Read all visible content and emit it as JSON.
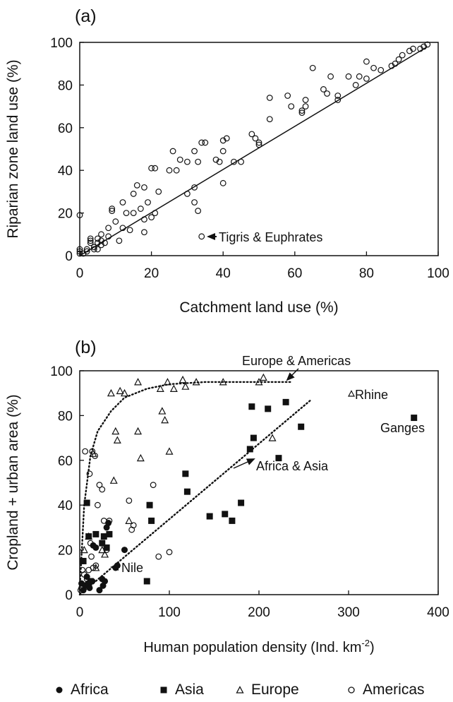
{
  "chart_data": [
    {
      "panel_label": "(a)",
      "type": "scatter",
      "xlabel": "Catchment land use (%)",
      "ylabel": "Riparian zone land use (%)",
      "xlim": [
        0,
        100
      ],
      "ylim": [
        0,
        100
      ],
      "xticks": [
        0,
        20,
        40,
        60,
        80,
        100
      ],
      "yticks": [
        0,
        20,
        40,
        60,
        80,
        100
      ],
      "grid": false,
      "reference_line": {
        "from": [
          0,
          0
        ],
        "to": [
          97,
          98
        ]
      },
      "annotation": {
        "text": "Tigris & Euphrates",
        "x": 34,
        "y": 9
      },
      "points": [
        [
          0,
          19
        ],
        [
          0,
          3
        ],
        [
          0,
          2
        ],
        [
          0,
          1
        ],
        [
          1,
          1
        ],
        [
          2,
          2
        ],
        [
          2,
          3
        ],
        [
          3,
          6
        ],
        [
          3,
          7
        ],
        [
          3,
          8
        ],
        [
          4,
          4
        ],
        [
          4,
          3
        ],
        [
          5,
          6
        ],
        [
          5,
          3
        ],
        [
          5,
          8
        ],
        [
          6,
          10
        ],
        [
          6,
          7
        ],
        [
          6,
          5
        ],
        [
          7,
          6
        ],
        [
          8,
          9
        ],
        [
          8,
          13
        ],
        [
          9,
          21
        ],
        [
          9,
          22
        ],
        [
          10,
          16
        ],
        [
          11,
          7
        ],
        [
          12,
          13
        ],
        [
          12,
          25
        ],
        [
          13,
          20
        ],
        [
          14,
          12
        ],
        [
          15,
          29
        ],
        [
          15,
          20
        ],
        [
          16,
          33
        ],
        [
          17,
          22
        ],
        [
          18,
          32
        ],
        [
          18,
          17
        ],
        [
          18,
          11
        ],
        [
          19,
          25
        ],
        [
          20,
          18
        ],
        [
          20,
          41
        ],
        [
          21,
          41
        ],
        [
          21,
          20
        ],
        [
          22,
          30
        ],
        [
          25,
          40
        ],
        [
          26,
          49
        ],
        [
          27,
          40
        ],
        [
          28,
          45
        ],
        [
          30,
          44
        ],
        [
          30,
          29
        ],
        [
          32,
          32
        ],
        [
          32,
          49
        ],
        [
          32,
          25
        ],
        [
          33,
          44
        ],
        [
          33,
          21
        ],
        [
          34,
          53
        ],
        [
          34,
          9
        ],
        [
          35,
          53
        ],
        [
          38,
          45
        ],
        [
          39,
          44
        ],
        [
          40,
          54
        ],
        [
          40,
          49
        ],
        [
          40,
          34
        ],
        [
          41,
          55
        ],
        [
          43,
          44
        ],
        [
          45,
          44
        ],
        [
          48,
          57
        ],
        [
          49,
          55
        ],
        [
          50,
          53
        ],
        [
          50,
          52
        ],
        [
          53,
          74
        ],
        [
          53,
          64
        ],
        [
          58,
          75
        ],
        [
          59,
          70
        ],
        [
          62,
          67
        ],
        [
          62,
          68
        ],
        [
          63,
          70
        ],
        [
          63,
          73
        ],
        [
          65,
          88
        ],
        [
          68,
          78
        ],
        [
          69,
          76
        ],
        [
          70,
          84
        ],
        [
          72,
          73
        ],
        [
          72,
          75
        ],
        [
          75,
          84
        ],
        [
          77,
          80
        ],
        [
          78,
          84
        ],
        [
          80,
          83
        ],
        [
          80,
          91
        ],
        [
          82,
          88
        ],
        [
          84,
          87
        ],
        [
          87,
          89
        ],
        [
          88,
          90
        ],
        [
          89,
          92
        ],
        [
          90,
          94
        ],
        [
          92,
          96
        ],
        [
          93,
          97
        ],
        [
          95,
          97
        ],
        [
          96,
          98
        ],
        [
          97,
          99
        ]
      ]
    },
    {
      "panel_label": "(b)",
      "type": "scatter",
      "xlabel_main": "Human population density (Ind. km",
      "xlabel_sup": "-2",
      "xlabel_end": ")",
      "ylabel": "Cropland + urban area (%)",
      "xlim": [
        0,
        400
      ],
      "ylim": [
        0,
        100
      ],
      "xticks": [
        0,
        100,
        200,
        300,
        400
      ],
      "yticks": [
        0,
        20,
        40,
        60,
        80,
        100
      ],
      "grid": false,
      "series": [
        {
          "name": "Africa",
          "marker": "filled-circle",
          "points": [
            [
              2,
              5
            ],
            [
              4,
              2
            ],
            [
              6,
              4
            ],
            [
              8,
              8
            ],
            [
              10,
              5
            ],
            [
              11,
              3
            ],
            [
              12,
              6
            ],
            [
              14,
              6
            ],
            [
              15,
              22
            ],
            [
              18,
              21
            ],
            [
              22,
              2
            ],
            [
              25,
              7
            ],
            [
              26,
              4
            ],
            [
              28,
              6
            ],
            [
              30,
              30
            ],
            [
              32,
              32
            ],
            [
              40,
              12
            ],
            [
              42,
              13
            ],
            [
              50,
              20
            ]
          ]
        },
        {
          "name": "Asia",
          "marker": "filled-square",
          "points": [
            [
              4,
              15
            ],
            [
              8,
              41
            ],
            [
              10,
              26
            ],
            [
              12,
              6
            ],
            [
              18,
              27
            ],
            [
              25,
              23
            ],
            [
              27,
              26
            ],
            [
              30,
              21
            ],
            [
              33,
              27
            ],
            [
              75,
              6
            ],
            [
              78,
              40
            ],
            [
              80,
              33
            ],
            [
              118,
              54
            ],
            [
              120,
              46
            ],
            [
              145,
              35
            ],
            [
              162,
              36
            ],
            [
              170,
              33
            ],
            [
              180,
              41
            ],
            [
              190,
              65
            ],
            [
              192,
              84
            ],
            [
              194,
              70
            ],
            [
              210,
              83
            ],
            [
              222,
              61
            ],
            [
              230,
              86
            ],
            [
              247,
              75
            ],
            [
              373,
              79
            ]
          ]
        },
        {
          "name": "Europe",
          "marker": "open-triangle",
          "points": [
            [
              5,
              20
            ],
            [
              10,
              26
            ],
            [
              15,
              63
            ],
            [
              18,
              12
            ],
            [
              25,
              20
            ],
            [
              28,
              18
            ],
            [
              35,
              90
            ],
            [
              38,
              51
            ],
            [
              40,
              73
            ],
            [
              42,
              69
            ],
            [
              45,
              91
            ],
            [
              50,
              90
            ],
            [
              55,
              33
            ],
            [
              65,
              95
            ],
            [
              65,
              73
            ],
            [
              68,
              61
            ],
            [
              90,
              92
            ],
            [
              92,
              82
            ],
            [
              95,
              78
            ],
            [
              98,
              95
            ],
            [
              100,
              64
            ],
            [
              105,
              92
            ],
            [
              115,
              96
            ],
            [
              118,
              93
            ],
            [
              130,
              95
            ],
            [
              160,
              95
            ],
            [
              200,
              95
            ],
            [
              205,
              97
            ],
            [
              215,
              70
            ]
          ]
        },
        {
          "name": "Americas",
          "marker": "open-circle",
          "points": [
            [
              1,
              2
            ],
            [
              2,
              3
            ],
            [
              3,
              11
            ],
            [
              4,
              15
            ],
            [
              5,
              9
            ],
            [
              6,
              64
            ],
            [
              8,
              7
            ],
            [
              9,
              5
            ],
            [
              10,
              11
            ],
            [
              11,
              54
            ],
            [
              12,
              23
            ],
            [
              13,
              17
            ],
            [
              14,
              64
            ],
            [
              15,
              12
            ],
            [
              17,
              62
            ],
            [
              18,
              13
            ],
            [
              20,
              40
            ],
            [
              22,
              49
            ],
            [
              25,
              47
            ],
            [
              27,
              33
            ],
            [
              30,
              20
            ],
            [
              33,
              33
            ],
            [
              55,
              42
            ],
            [
              58,
              29
            ],
            [
              60,
              31
            ],
            [
              82,
              49
            ],
            [
              88,
              17
            ],
            [
              100,
              19
            ]
          ]
        }
      ],
      "trend_lines": [
        {
          "label": "Europe & Americas",
          "style": "dotted",
          "points": [
            [
              0,
              2
            ],
            [
              5,
              40
            ],
            [
              12,
              62
            ],
            [
              20,
              73
            ],
            [
              35,
              82
            ],
            [
              50,
              88
            ],
            [
              75,
              92
            ],
            [
              100,
              94
            ],
            [
              140,
              95
            ],
            [
              180,
              95
            ],
            [
              235,
              95
            ]
          ]
        },
        {
          "label": "Africa & Asia",
          "style": "dotted",
          "points": [
            [
              0,
              0
            ],
            [
              258,
              87
            ]
          ]
        }
      ],
      "annotations": [
        {
          "text": "Europe & Americas",
          "x": 186,
          "y": 100
        },
        {
          "text": "Rhine",
          "x": 311,
          "y": 90,
          "marker": "open-triangle"
        },
        {
          "text": "Ganges",
          "x": 335,
          "y": 70
        },
        {
          "text": "Africa & Asia",
          "x": 193,
          "y": 45
        },
        {
          "text": "Nile",
          "x": 52,
          "y": 12
        }
      ]
    }
  ],
  "legend": [
    {
      "label": "Africa",
      "marker": "filled-circle"
    },
    {
      "label": "Asia",
      "marker": "filled-square"
    },
    {
      "label": "Europe",
      "marker": "open-triangle"
    },
    {
      "label": "Americas",
      "marker": "open-circle"
    }
  ]
}
